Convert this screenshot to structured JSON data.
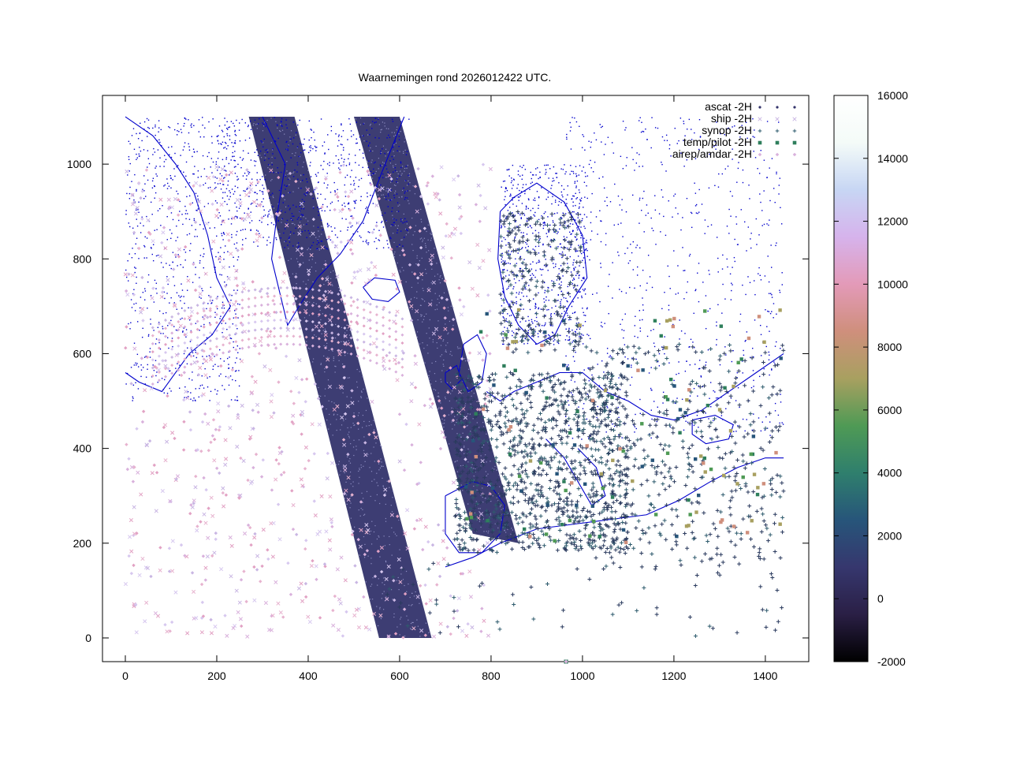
{
  "chart_data": {
    "type": "scatter",
    "title": "Waarnemingen rond 2026012422 UTC.",
    "xlabel": "",
    "ylabel": "",
    "xlim": [
      -50,
      1495
    ],
    "ylim": [
      -50,
      1145
    ],
    "x_ticks": [
      0,
      200,
      400,
      600,
      800,
      1000,
      1200,
      1400
    ],
    "y_ticks": [
      0,
      200,
      400,
      600,
      800,
      1000
    ],
    "grid": false,
    "legend_position": "top-right",
    "series": [
      {
        "name": "ascat -2H",
        "marker": "dot",
        "color": "#33336b"
      },
      {
        "name": "ship -2H",
        "marker": "x",
        "color": "#c9b6e3"
      },
      {
        "name": "synop -2H",
        "marker": "plus",
        "color": "#2e5b6d"
      },
      {
        "name": "temp/pilot -2H",
        "marker": "square",
        "color": "#2f7f5c"
      },
      {
        "name": "airep/amdar -2H",
        "marker": "diamond",
        "color": "#d9b1dc"
      }
    ],
    "colorbar": {
      "range": [
        -2000,
        16000
      ],
      "ticks": [
        -2000,
        0,
        2000,
        4000,
        6000,
        8000,
        10000,
        12000,
        14000,
        16000
      ],
      "colors": [
        "#000000",
        "#2a1f45",
        "#36376e",
        "#27557a",
        "#2f7f6d",
        "#4f9a55",
        "#a8a060",
        "#cf8f7c",
        "#e39ab8",
        "#d6b3ec",
        "#c7d6f4",
        "#f4fbf8",
        "#ffffff"
      ]
    },
    "ascat_swaths": [
      {
        "name": "west swath",
        "polygon": [
          [
            270,
            1100
          ],
          [
            370,
            1100
          ],
          [
            670,
            0
          ],
          [
            555,
            0
          ]
        ]
      },
      {
        "name": "east swath",
        "polygon": [
          [
            500,
            1100
          ],
          [
            600,
            1100
          ],
          [
            860,
            200
          ],
          [
            760,
            220
          ]
        ]
      }
    ],
    "coastline_color": "#0000cc"
  }
}
